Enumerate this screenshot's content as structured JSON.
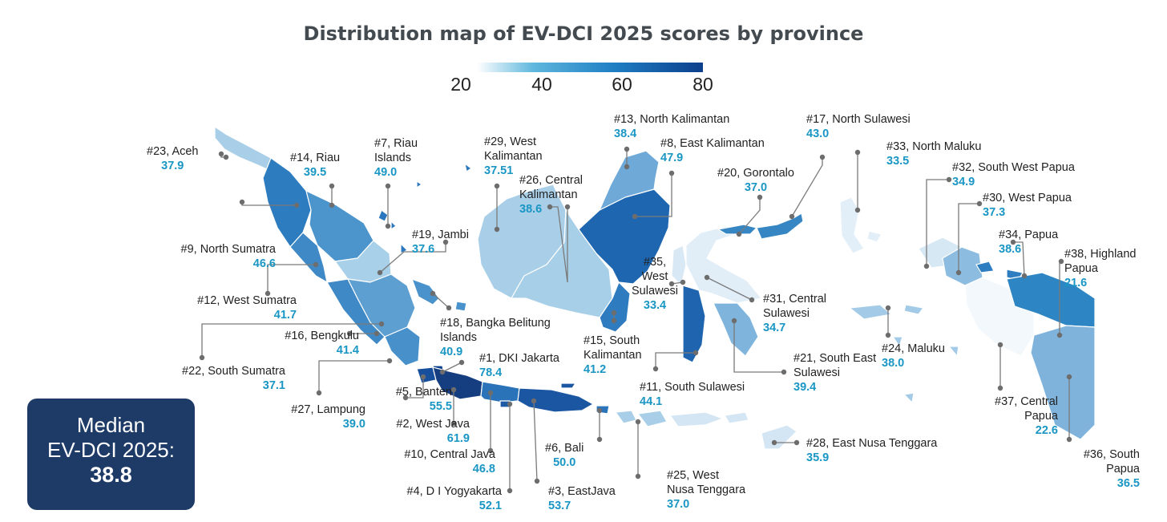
{
  "title": "Distribution map of EV-DCI 2025 scores by province",
  "legend": {
    "ticks": [
      "20",
      "40",
      "60",
      "80"
    ],
    "range": [
      20,
      80
    ],
    "colors": [
      "#ffffff",
      "#5fb7dd",
      "#1f7fc4",
      "#0b3f8c"
    ]
  },
  "median": {
    "line1": "Median",
    "line2": "EV-DCI 2025:",
    "value": "38.8"
  },
  "provinces": {
    "aceh": {
      "name": "#23, Aceh",
      "score": "37.9"
    },
    "riau": {
      "name": "#14, Riau",
      "score": "39.5"
    },
    "riau_islands": {
      "name": "#7, Riau Islands",
      "score": "49.0"
    },
    "west_kalimantan": {
      "name": "#29, West Kalimantan",
      "score": "37.51"
    },
    "north_kalimantan": {
      "name": "#13, North Kalimantan",
      "score": "38.4"
    },
    "east_kalimantan": {
      "name": "#8, East Kalimantan",
      "score": "47.9"
    },
    "north_sulawesi": {
      "name": "#17, North Sulawesi",
      "score": "43.0"
    },
    "gorontalo": {
      "name": "#20, Gorontalo",
      "score": "37.0"
    },
    "north_maluku": {
      "name": "#33, North Maluku",
      "score": "33.5"
    },
    "south_west_papua": {
      "name": "#32, South West Papua",
      "score": "34.9"
    },
    "west_papua": {
      "name": "#30, West Papua",
      "score": "37.3"
    },
    "papua": {
      "name": "#34, Papua",
      "score": "38.6"
    },
    "highland_papua": {
      "name": "#38, Highland Papua",
      "score": "21.6"
    },
    "central_kalimantan": {
      "name": "#26, Central Kalimantan",
      "score": "38.6"
    },
    "jambi": {
      "name": "#19, Jambi",
      "score": "37.6"
    },
    "north_sumatra": {
      "name": "#9, North Sumatra",
      "score": "46.6"
    },
    "west_sumatra": {
      "name": "#12, West Sumatra",
      "score": "41.7"
    },
    "bengkulu": {
      "name": "#16, Bengkulu",
      "score": "41.4"
    },
    "south_sumatra": {
      "name": "#22, South Sumatra",
      "score": "37.1"
    },
    "lampung": {
      "name": "#27, Lampung",
      "score": "39.0"
    },
    "banten": {
      "name": "#5, Banten",
      "score": "55.5"
    },
    "west_java": {
      "name": "#2, West Java",
      "score": "61.9"
    },
    "central_java": {
      "name": "#10, Central Java",
      "score": "46.8"
    },
    "yogyakarta": {
      "name": "#4, D I Yogyakarta",
      "score": "52.1"
    },
    "east_java": {
      "name": "#3, EastJava",
      "score": "53.7"
    },
    "bali": {
      "name": "#6, Bali",
      "score": "50.0"
    },
    "west_nusa_tenggara": {
      "name": "#25, West Nusa Tenggara",
      "score": "37.0"
    },
    "east_nusa_tenggara": {
      "name": "#28, East Nusa Tenggara",
      "score": "35.9"
    },
    "dki_jakarta": {
      "name": "#1, DKI Jakarta",
      "score": "78.4"
    },
    "bangka_belitung": {
      "name": "#18, Bangka Belitung Islands",
      "score": "40.9"
    },
    "south_kalimantan": {
      "name": "#15, South Kalimantan",
      "score": "41.2"
    },
    "west_sulawesi": {
      "name": "#35, West Sulawesi",
      "score": "33.4"
    },
    "central_sulawesi": {
      "name": "#31, Central Sulawesi",
      "score": "34.7"
    },
    "south_sulawesi": {
      "name": "#11, South Sulawesi",
      "score": "44.1"
    },
    "south_east_sulawesi": {
      "name": "#21, South East Sulawesi",
      "score": "39.4"
    },
    "maluku": {
      "name": "#24, Maluku",
      "score": "38.0"
    },
    "central_papua": {
      "name": "#37, Central Papua",
      "score": "22.6"
    },
    "south_papua": {
      "name": "#36, South Papua",
      "score": "36.5"
    }
  }
}
